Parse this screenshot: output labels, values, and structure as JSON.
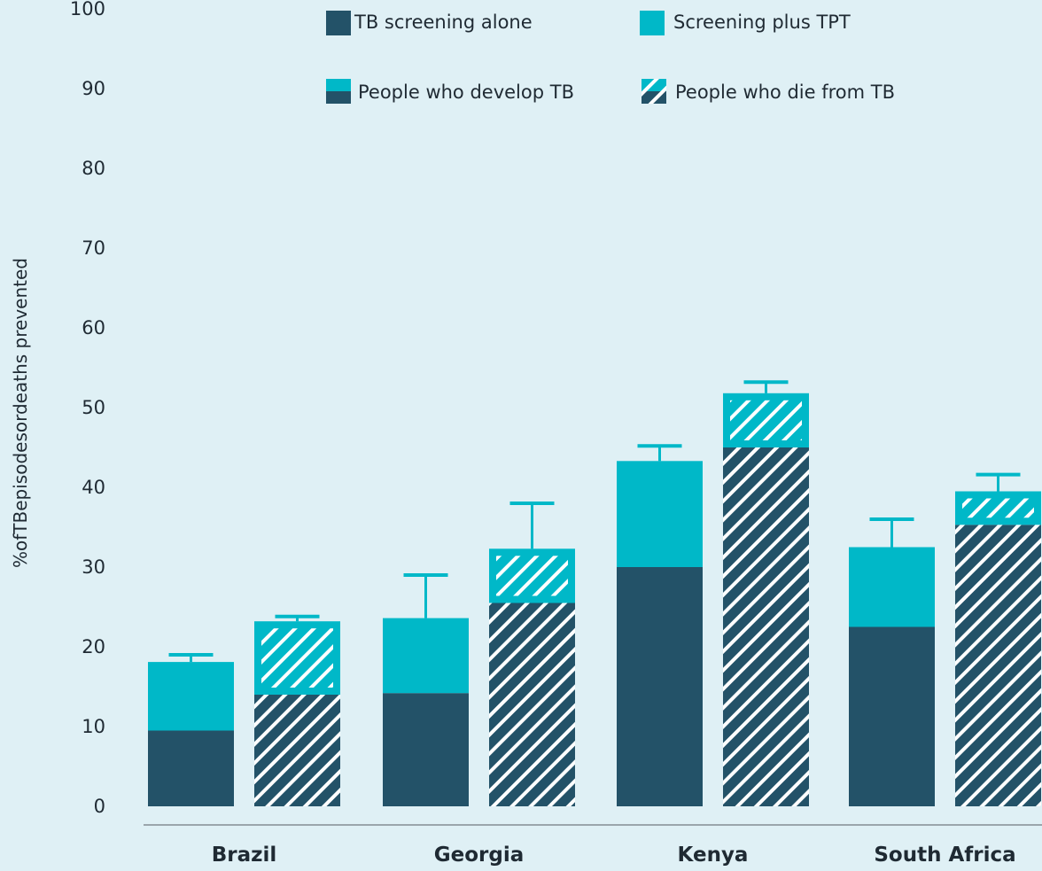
{
  "chart_data": {
    "type": "bar",
    "stacked": true,
    "ylabel": "%ofTBepisodesordeaths prevented",
    "ylim": [
      0,
      100
    ],
    "yticks": [
      0,
      10,
      20,
      30,
      40,
      50,
      60,
      70,
      80,
      90,
      100
    ],
    "categories": [
      "Brazil",
      "Georgia",
      "Kenya",
      "South Africa"
    ],
    "series": [
      {
        "name": "People who develop TB",
        "segments": [
          {
            "name": "TB screening alone",
            "values": [
              9.5,
              14.2,
              30.0,
              22.5
            ]
          },
          {
            "name": "Screening plus TPT",
            "values": [
              8.6,
              9.4,
              13.3,
              10.0
            ]
          }
        ],
        "totals": [
          18.1,
          23.6,
          43.3,
          32.5
        ],
        "error_upper": [
          19.0,
          29.0,
          45.2,
          36.0
        ]
      },
      {
        "name": "People who die from TB",
        "segments": [
          {
            "name": "TB screening alone",
            "values": [
              14.0,
              25.5,
              45.0,
              35.3
            ]
          },
          {
            "name": "Screening plus TPT",
            "values": [
              9.2,
              6.8,
              6.8,
              4.2
            ]
          }
        ],
        "totals": [
          23.2,
          32.3,
          51.8,
          39.5
        ],
        "error_upper": [
          23.8,
          38.0,
          53.2,
          41.6
        ]
      }
    ],
    "legend": {
      "placement": "top",
      "items": [
        {
          "label": "TB screening alone",
          "swatch": "dark"
        },
        {
          "label": "Screening plus TPT",
          "swatch": "teal"
        },
        {
          "label": "People who develop TB",
          "swatch": "split"
        },
        {
          "label": "People who die from TB",
          "swatch": "hatched"
        }
      ]
    },
    "colors": {
      "dark": "#235268",
      "teal": "#00b8c8",
      "hatch": "#ffffff",
      "axis": "#9aa5ab",
      "background": "#dff0f5"
    }
  }
}
